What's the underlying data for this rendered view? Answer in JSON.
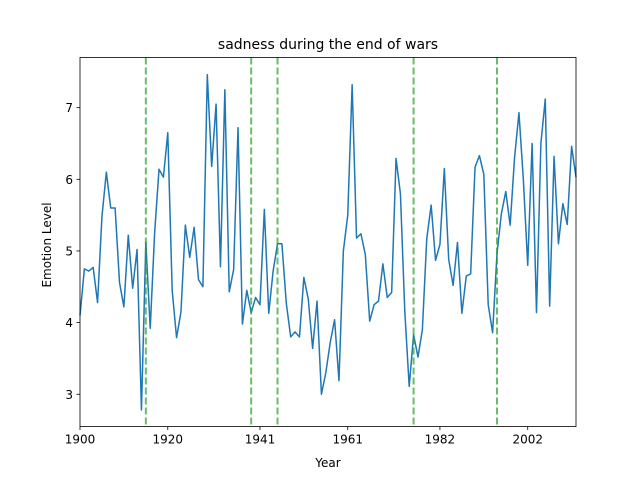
{
  "chart_data": {
    "type": "line",
    "title": "sadness during the end of wars",
    "xlabel": "Year",
    "ylabel": "Emotion Level",
    "xlim": [
      1900,
      2013
    ],
    "ylim": [
      2.55,
      7.7
    ],
    "x_ticks": [
      1900,
      1920,
      1941,
      1961,
      1982,
      2002
    ],
    "y_ticks": [
      3,
      4,
      5,
      6,
      7
    ],
    "grid": false,
    "line_color": "#1f77b4",
    "marker_color": "#2ca02c",
    "series": [
      {
        "x": [
          1900,
          1901,
          1902,
          1903,
          1904,
          1905,
          1906,
          1907,
          1908,
          1909,
          1910,
          1911,
          1912,
          1913,
          1914,
          1915,
          1916,
          1917,
          1918,
          1919,
          1920,
          1921,
          1922,
          1923,
          1924,
          1925,
          1926,
          1927,
          1928,
          1929,
          1930,
          1931,
          1932,
          1933,
          1934,
          1935,
          1936,
          1937,
          1938,
          1939,
          1940,
          1941,
          1942,
          1943,
          1944,
          1945,
          1946,
          1947,
          1948,
          1949,
          1950,
          1951,
          1952,
          1953,
          1954,
          1955,
          1956,
          1957,
          1958,
          1959,
          1960,
          1961,
          1962,
          1963,
          1964,
          1965,
          1966,
          1967,
          1968,
          1969,
          1970,
          1971,
          1972,
          1973,
          1974,
          1975,
          1976,
          1977,
          1978,
          1979,
          1980,
          1981,
          1982,
          1983,
          1984,
          1985,
          1986,
          1987,
          1988,
          1989,
          1990,
          1991,
          1992,
          1993,
          1994,
          1995,
          1996,
          1997,
          1998,
          1999,
          2000,
          2001,
          2002,
          2003,
          2004,
          2005,
          2006,
          2007,
          2008,
          2009,
          2010,
          2011,
          2012,
          2013
        ],
        "values": [
          4.1,
          4.75,
          4.72,
          4.77,
          4.28,
          5.48,
          6.1,
          5.6,
          5.6,
          4.56,
          4.22,
          5.22,
          4.48,
          5.02,
          2.78,
          5.12,
          3.92,
          5.25,
          6.14,
          6.03,
          6.65,
          4.45,
          3.79,
          4.15,
          5.36,
          4.91,
          5.33,
          4.6,
          4.5,
          7.46,
          6.18,
          7.05,
          4.78,
          7.25,
          4.43,
          4.74,
          6.72,
          3.98,
          4.45,
          4.14,
          4.35,
          4.25,
          5.58,
          4.13,
          4.72,
          5.1,
          5.1,
          4.27,
          3.8,
          3.87,
          3.8,
          4.63,
          4.33,
          3.64,
          4.3,
          3.0,
          3.3,
          3.72,
          4.04,
          3.19,
          5.0,
          5.5,
          7.32,
          5.18,
          5.24,
          4.95,
          4.02,
          4.25,
          4.3,
          4.82,
          4.35,
          4.42,
          6.29,
          5.8,
          4.15,
          3.11,
          3.83,
          3.52,
          3.9,
          5.17,
          5.64,
          4.87,
          5.09,
          6.15,
          4.88,
          4.52,
          5.12,
          4.13,
          4.65,
          4.68,
          6.17,
          6.33,
          6.07,
          4.25,
          3.86,
          4.96,
          5.52,
          5.83,
          5.36,
          6.3,
          6.93,
          6.0,
          4.8,
          6.5,
          4.14,
          6.5,
          7.12,
          4.23,
          6.32,
          5.1,
          5.66,
          5.37,
          6.46,
          6.03
        ]
      }
    ],
    "war_end_years": [
      1915,
      1939,
      1945,
      1976,
      1995
    ]
  }
}
